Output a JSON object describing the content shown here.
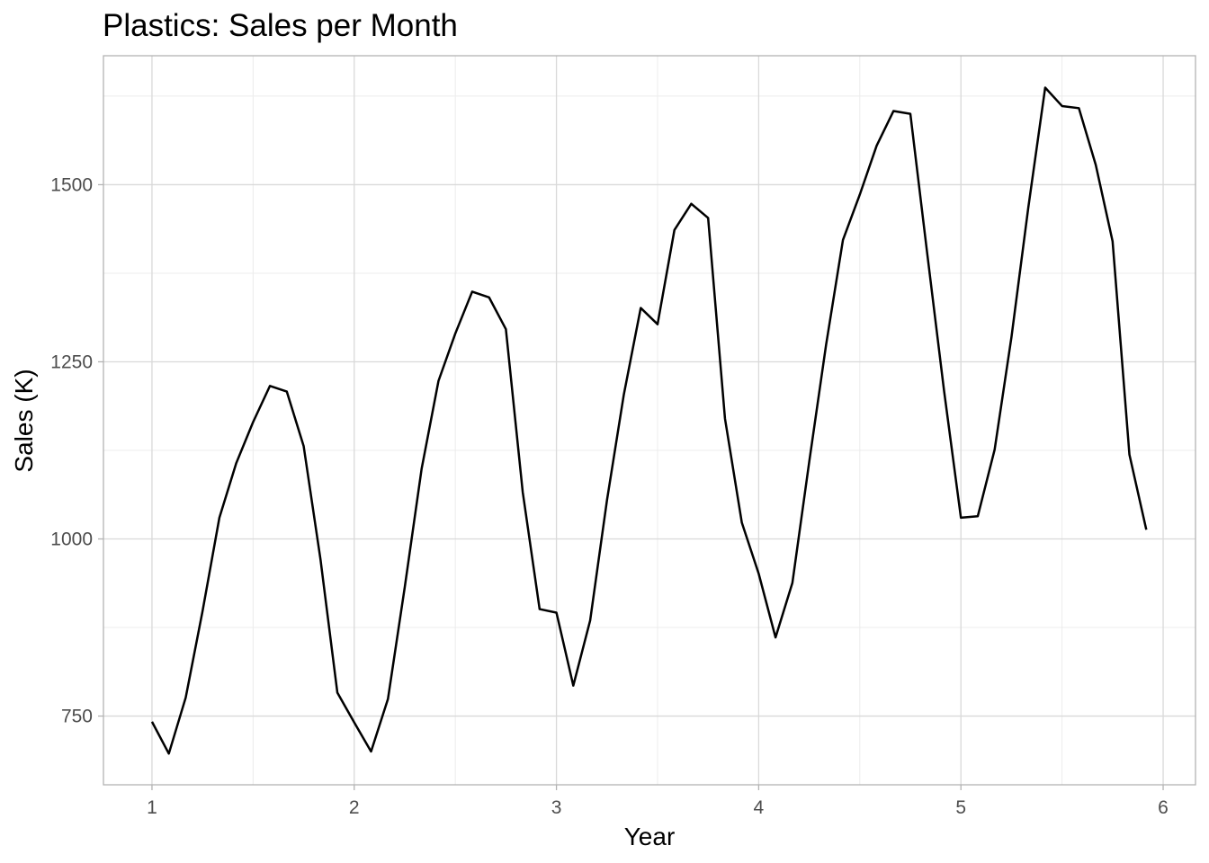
{
  "chart_data": {
    "type": "line",
    "title": "Plastics: Sales per Month",
    "xlabel": "Year",
    "ylabel": "Sales (K)",
    "xlim": [
      0.76,
      6.16
    ],
    "ylim": [
      653,
      1682
    ],
    "x_ticks": [
      1,
      2,
      3,
      4,
      5,
      6
    ],
    "y_ticks": [
      750,
      1000,
      1250,
      1500
    ],
    "grid": true,
    "legend": "none",
    "series": [
      {
        "color": "#000000",
        "x": [
          1.0,
          1.0833,
          1.1667,
          1.25,
          1.3333,
          1.4167,
          1.5,
          1.5833,
          1.6667,
          1.75,
          1.8333,
          1.9167,
          2.0,
          2.0833,
          2.1667,
          2.25,
          2.3333,
          2.4167,
          2.5,
          2.5833,
          2.6667,
          2.75,
          2.8333,
          2.9167,
          3.0,
          3.0833,
          3.1667,
          3.25,
          3.3333,
          3.4167,
          3.5,
          3.5833,
          3.6667,
          3.75,
          3.8333,
          3.9167,
          4.0,
          4.0833,
          4.1667,
          4.25,
          4.3333,
          4.4167,
          4.5,
          4.5833,
          4.6667,
          4.75,
          4.8333,
          4.9167,
          5.0,
          5.0833,
          5.1667,
          5.25,
          5.3333,
          5.4167,
          5.5,
          5.5833,
          5.6667,
          5.75,
          5.8333,
          5.9167
        ],
        "values": [
          742,
          697,
          776,
          898,
          1030,
          1107,
          1165,
          1216,
          1208,
          1131,
          971,
          783,
          741,
          700,
          774,
          932,
          1099,
          1223,
          1290,
          1349,
          1341,
          1296,
          1066,
          901,
          896,
          793,
          885,
          1055,
          1204,
          1326,
          1303,
          1436,
          1473,
          1453,
          1170,
          1023,
          951,
          861,
          938,
          1109,
          1274,
          1422,
          1486,
          1555,
          1604,
          1600,
          1403,
          1209,
          1030,
          1032,
          1126,
          1285,
          1468,
          1637,
          1611,
          1608,
          1528,
          1420,
          1119,
          1013
        ]
      }
    ]
  }
}
